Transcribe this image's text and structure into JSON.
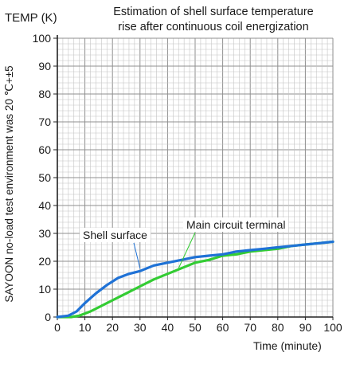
{
  "chart_data": {
    "type": "line",
    "title": "Estimation of shell surface temperature rise after continuous coil energization",
    "title_lines": [
      "Estimation of shell surface temperature",
      "rise after continuous coil energization"
    ],
    "ylabel": "TEMP (K)",
    "xlabel": "Time (minute)",
    "side_note": "SAYOON no-load test environment was 20 ℃+±5",
    "xlim": [
      0,
      100
    ],
    "ylim": [
      0,
      100
    ],
    "xticks": [
      "0",
      "10",
      "20",
      "30",
      "40",
      "50",
      "60",
      "70",
      "80",
      "90",
      "100"
    ],
    "yticks": [
      "0",
      "10",
      "20",
      "30",
      "40",
      "50",
      "60",
      "70",
      "80",
      "90",
      "100"
    ],
    "grid": true,
    "series": [
      {
        "name": "Shell surface",
        "color": "#1f72d6",
        "x": [
          0,
          4,
          7,
          10,
          14,
          18,
          22,
          26,
          30,
          35,
          40,
          45,
          50,
          55,
          60,
          65,
          70,
          75,
          80,
          85,
          90,
          95,
          100
        ],
        "y": [
          0,
          0.5,
          2,
          5,
          8.5,
          11.5,
          14,
          15.5,
          16.5,
          18.5,
          19.5,
          20.5,
          21.5,
          22,
          22.5,
          23.5,
          24,
          24.5,
          25,
          25.5,
          26,
          26.5,
          27
        ]
      },
      {
        "name": "Main circuit terminal",
        "color": "#33cc33",
        "x": [
          0,
          5,
          8,
          12,
          16,
          20,
          25,
          30,
          35,
          40,
          45,
          50,
          55,
          60,
          65,
          70,
          75,
          80,
          85,
          90,
          95,
          100
        ],
        "y": [
          0,
          0,
          0.5,
          2,
          4,
          6,
          8.5,
          11,
          13.5,
          15.5,
          17.5,
          19.5,
          20.5,
          22,
          22.5,
          23.5,
          24,
          24.5,
          25.5,
          26,
          26.5,
          27
        ]
      }
    ]
  }
}
